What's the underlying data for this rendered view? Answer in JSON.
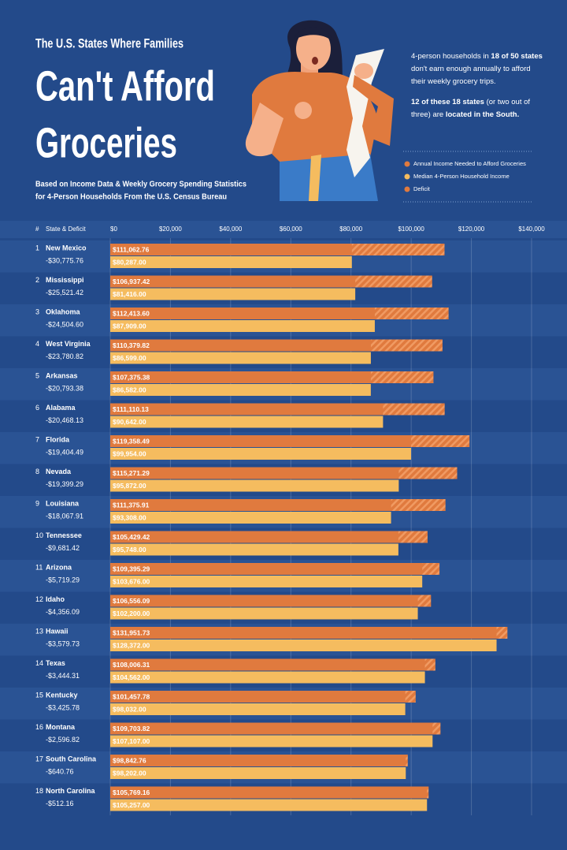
{
  "header": {
    "kicker": "The U.S. States Where Families",
    "title_lines": [
      "Can't Afford",
      "Groceries"
    ],
    "subtitle_lines": [
      "Based on Income Data & Weekly Grocery Spending Statistics",
      "for 4-Person Households From the U.S. Census Bureau"
    ]
  },
  "notes": [
    [
      {
        "text": "4-person households in ",
        "bold": false
      },
      {
        "text": "18 of 50 states",
        "bold": true
      },
      {
        "text": " don't earn enough annually to afford their weekly grocery trips.",
        "bold": false
      }
    ],
    [
      {
        "text": "12 of these 18 states",
        "bold": true
      },
      {
        "text": " (or two out of three) are ",
        "bold": false
      },
      {
        "text": "located in the South.",
        "bold": true
      }
    ]
  ],
  "chart_data": {
    "type": "bar",
    "orientation": "horizontal",
    "rank_header": "#",
    "category_header": "State & Deficit",
    "ranks": [
      1,
      2,
      3,
      4,
      5,
      6,
      7,
      8,
      9,
      10,
      11,
      12,
      13,
      14,
      15,
      16,
      17,
      18
    ],
    "categories": [
      "New Mexico",
      "Mississippi",
      "Oklahoma",
      "West Virginia",
      "Arkansas",
      "Alabama",
      "Florida",
      "Nevada",
      "Louisiana",
      "Tennessee",
      "Arizona",
      "Idaho",
      "Hawaii",
      "Texas",
      "Kentucky",
      "Montana",
      "South Carolina",
      "North Carolina"
    ],
    "series": [
      {
        "name": "Annual Income Needed to Afford Groceries",
        "color": "#e07a3e",
        "values": [
          111062.76,
          106937.42,
          112413.6,
          110379.82,
          107375.38,
          111110.13,
          119358.49,
          115271.29,
          111375.91,
          105429.42,
          109395.29,
          106556.09,
          131951.73,
          108006.31,
          101457.78,
          109703.82,
          98842.76,
          105769.16
        ],
        "value_labels": [
          "$111,062.76",
          "$106,937.42",
          "$112,413.60",
          "$110,379.82",
          "$107,375.38",
          "$111,110.13",
          "$119,358.49",
          "$115,271.29",
          "$111,375.91",
          "$105,429.42",
          "$109,395.29",
          "$106,556.09",
          "$131,951.73",
          "$108,006.31",
          "$101,457.78",
          "$109,703.82",
          "$98,842.76",
          "$105,769.16"
        ]
      },
      {
        "name": "Median 4-Person Household Income",
        "color": "#f5bc5f",
        "values": [
          80287.0,
          81416.0,
          87909.0,
          86599.0,
          86582.0,
          90642.0,
          99954.0,
          95872.0,
          93308.0,
          95748.0,
          103676.0,
          102200.0,
          128372.0,
          104562.0,
          98032.0,
          107107.0,
          98202.0,
          105257.0
        ],
        "value_labels": [
          "$80,287.00",
          "$81,416.00",
          "$87,909.00",
          "$86,599.00",
          "$86,582.00",
          "$90,642.00",
          "$99,954.00",
          "$95,872.00",
          "$93,308.00",
          "$95,748.00",
          "$103,676.00",
          "$102,200.00",
          "$128,372.00",
          "$104,562.00",
          "$98,032.00",
          "$107,107.00",
          "$98,202.00",
          "$105,257.00"
        ]
      },
      {
        "name": "Deficit",
        "color": "#e07a3e",
        "values": [
          -30775.76,
          -25521.42,
          -24504.6,
          -23780.82,
          -20793.38,
          -20468.13,
          -19404.49,
          -19399.29,
          -18067.91,
          -9681.42,
          -5719.29,
          -4356.09,
          -3579.73,
          -3444.31,
          -3425.78,
          -2596.82,
          -640.76,
          -512.16
        ],
        "value_labels": [
          "-$30,775.76",
          "-$25,521.42",
          "-$24,504.60",
          "-$23,780.82",
          "-$20,793.38",
          "-$20,468.13",
          "-$19,404.49",
          "-$19,399.29",
          "-$18,067.91",
          "-$9,681.42",
          "-$5,719.29",
          "-$4,356.09",
          "-$3,579.73",
          "-$3,444.31",
          "-$3,425.78",
          "-$2,596.82",
          "-$640.76",
          "-$512.16"
        ]
      }
    ],
    "xlim": [
      0,
      140000
    ],
    "xticks": [
      {
        "value": 0,
        "label": "$0"
      },
      {
        "value": 20000,
        "label": "$20,000"
      },
      {
        "value": 40000,
        "label": "$40,000"
      },
      {
        "value": 60000,
        "label": "$60,000"
      },
      {
        "value": 80000,
        "label": "$80,000"
      },
      {
        "value": 100000,
        "label": "$100,000"
      },
      {
        "value": 120000,
        "label": "$120,000"
      },
      {
        "value": 140000,
        "label": "$140,000"
      }
    ],
    "grid": true
  }
}
